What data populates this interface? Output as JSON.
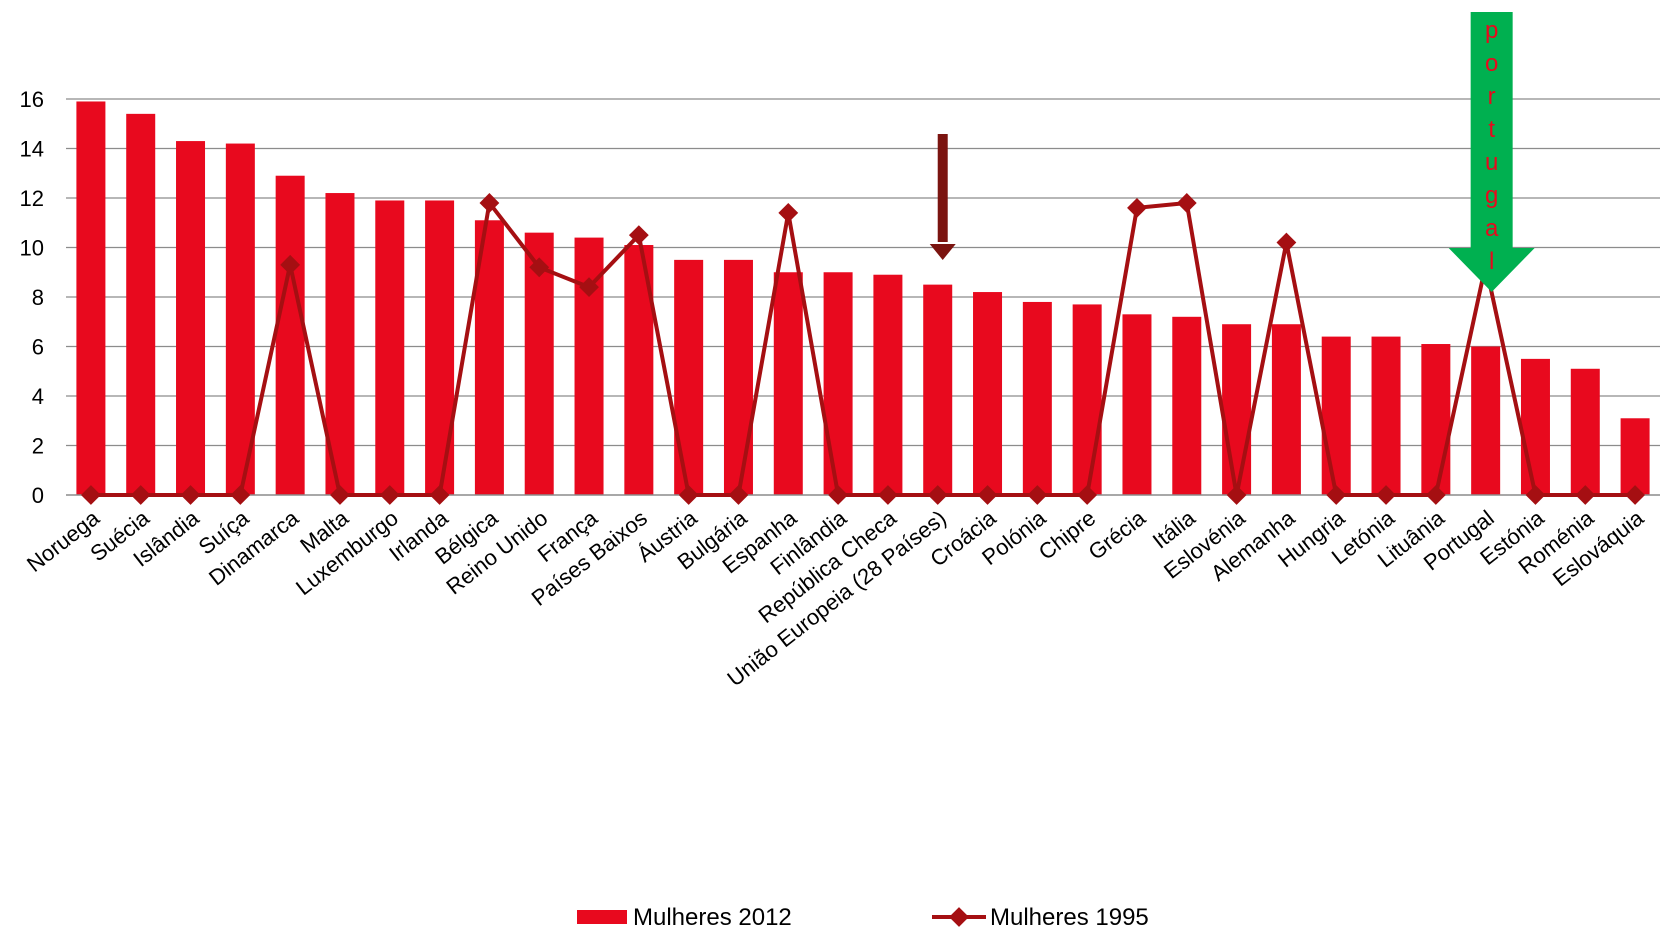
{
  "chart_data": {
    "type": "bar",
    "title": "",
    "xlabel": "",
    "ylabel": "",
    "ylim": [
      0,
      16
    ],
    "yticks": [
      0,
      2,
      4,
      6,
      8,
      10,
      12,
      14,
      16
    ],
    "grid": true,
    "legend_position": "bottom",
    "categories": [
      "Noruega",
      "Suécia",
      "Islândia",
      "Suíça",
      "Dinamarca",
      "Malta",
      "Luxemburgo",
      "Irlanda",
      "Bélgica",
      "Reino Unido",
      "França",
      "Países Baixos",
      "Áustria",
      "Bulgária",
      "Espanha",
      "Finlândia",
      "República Checa",
      "União Europeia (28 Países)",
      "Croácia",
      "Polónia",
      "Chipre",
      "Grécia",
      "Itália",
      "Eslovénia",
      "Alemanha",
      "Hungria",
      "Letónia",
      "Lituânia",
      "Portugal",
      "Estónia",
      "Roménia",
      "Eslováquia"
    ],
    "series": [
      {
        "name": "Mulheres 2012",
        "type": "bar",
        "color": "#e8091e",
        "values": [
          15.9,
          15.4,
          14.3,
          14.2,
          12.9,
          12.2,
          11.9,
          11.9,
          11.1,
          10.6,
          10.4,
          10.1,
          9.5,
          9.5,
          9.0,
          9.0,
          8.9,
          8.5,
          8.2,
          7.8,
          7.7,
          7.3,
          7.2,
          6.9,
          6.9,
          6.4,
          6.4,
          6.1,
          6.0,
          5.5,
          5.1,
          3.1
        ]
      },
      {
        "name": "Mulheres 1995",
        "type": "line",
        "color": "#a50f12",
        "values": [
          0,
          0,
          0,
          0,
          9.3,
          0,
          0,
          0,
          11.8,
          9.2,
          8.4,
          10.5,
          0,
          0,
          11.4,
          0,
          0,
          0,
          0,
          0,
          0,
          11.6,
          11.8,
          0,
          10.2,
          0,
          0,
          0,
          9.3,
          0,
          0,
          0
        ]
      }
    ],
    "annotations": {
      "eu_arrow": {
        "category": "União Europeia (28 Países)",
        "color": "#7b1410"
      },
      "portugal_arrow": {
        "category": "Portugal",
        "color": "#00b050",
        "letters": [
          "p",
          "o",
          "r",
          "t",
          "u",
          "g",
          "a",
          "l"
        ]
      }
    }
  }
}
